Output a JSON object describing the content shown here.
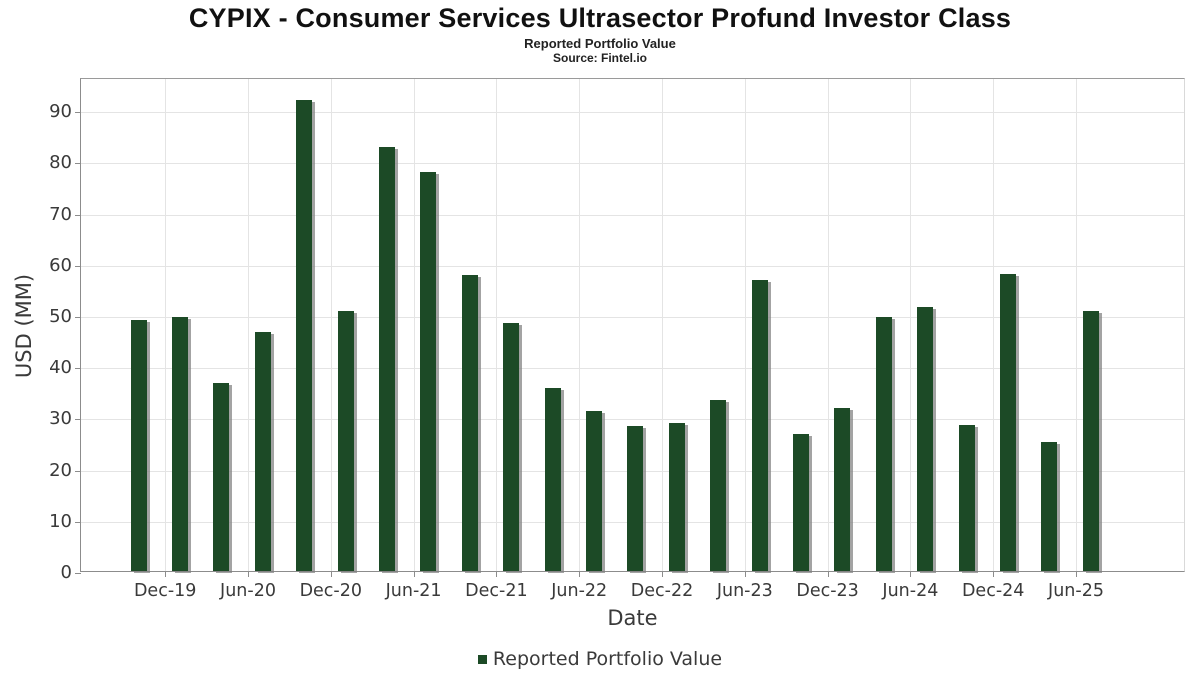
{
  "header": {
    "title": "CYPIX - Consumer Services Ultrasector Profund Investor Class",
    "subtitle": "Reported Portfolio Value",
    "source": "Source: Fintel.io"
  },
  "chart_data": {
    "type": "bar",
    "title": "CYPIX - Consumer Services Ultrasector Profund Investor Class",
    "subtitle": "Reported Portfolio Value",
    "source": "Source: Fintel.io",
    "xlabel": "Date",
    "ylabel": "USD (MM)",
    "ylim": [
      0,
      96.5
    ],
    "yticks": [
      0,
      10,
      20,
      30,
      40,
      50,
      60,
      70,
      80,
      90
    ],
    "grid": true,
    "legend": [
      "Reported Portfolio Value"
    ],
    "legend_position": "bottom",
    "x_tick_labels": [
      "Dec-19",
      "Jun-20",
      "Dec-20",
      "Jun-21",
      "Dec-21",
      "Jun-22",
      "Dec-22",
      "Jun-23",
      "Dec-23",
      "Jun-24",
      "Dec-24",
      "Jun-25"
    ],
    "categories": [
      "Sep-19",
      "Dec-19",
      "Mar-20",
      "Jun-20",
      "Sep-20",
      "Dec-20",
      "Mar-21",
      "Jun-21",
      "Sep-21",
      "Dec-21",
      "Mar-22",
      "Jun-22",
      "Sep-22",
      "Dec-22",
      "Mar-23",
      "Jun-23",
      "Sep-23",
      "Dec-23",
      "Mar-24",
      "Jun-24",
      "Sep-24",
      "Dec-24",
      "Mar-25",
      "Jun-25"
    ],
    "values": [
      49.0,
      49.7,
      36.8,
      46.6,
      92.0,
      50.8,
      82.9,
      78.0,
      57.9,
      48.5,
      35.8,
      31.2,
      28.3,
      28.9,
      33.4,
      56.9,
      26.8,
      31.9,
      49.7,
      51.5,
      28.6,
      58.0,
      25.2,
      50.7
    ],
    "series": [
      {
        "name": "Reported Portfolio Value",
        "values": [
          49.0,
          49.7,
          36.8,
          46.6,
          92.0,
          50.8,
          82.9,
          78.0,
          57.9,
          48.5,
          35.8,
          31.2,
          28.3,
          28.9,
          33.4,
          56.9,
          26.8,
          31.9,
          49.7,
          51.5,
          28.6,
          58.0,
          25.2,
          50.7
        ]
      }
    ],
    "colors": {
      "bar": "#1c4a26",
      "bar_shadow": "#808080",
      "gridline": "#e4e4e4",
      "axis": "#8c8c8c",
      "text": "#3a3a3a"
    }
  }
}
